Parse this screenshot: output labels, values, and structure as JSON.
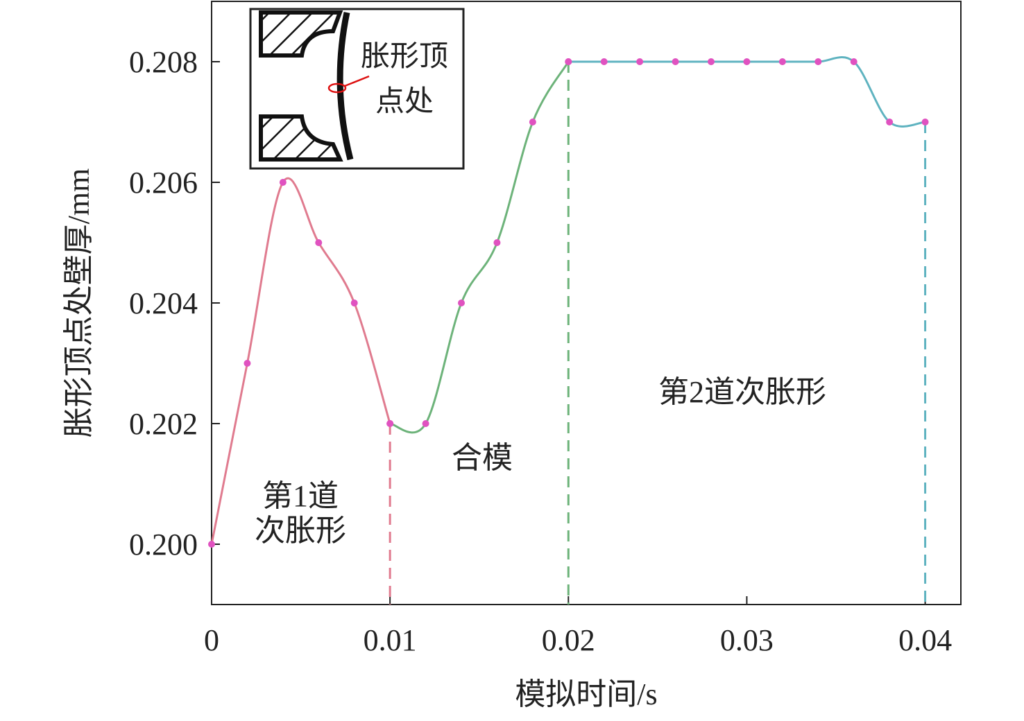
{
  "chart_data": {
    "type": "line",
    "xlabel": "模拟时间/s",
    "ylabel": "胀形顶点处壁厚/mm",
    "xlim": [
      0,
      0.042
    ],
    "ylim": [
      0.199,
      0.209
    ],
    "xticks": [
      0,
      0.01,
      0.02,
      0.03,
      0.04
    ],
    "yticks": [
      {
        "value": 0.2,
        "label": "0.200"
      },
      0.202,
      0.204,
      0.206,
      0.208
    ],
    "marker_color": "#e052c0",
    "series": [
      {
        "color": "#e07b8f",
        "x": [
          0,
          0.002,
          0.004,
          0.006,
          0.008,
          0.01
        ],
        "values": [
          0.2,
          0.203,
          0.206,
          0.205,
          0.204,
          0.202
        ]
      },
      {
        "color": "#6db37a",
        "x": [
          0.01,
          0.012,
          0.014,
          0.016,
          0.018,
          0.02
        ],
        "values": [
          0.202,
          0.202,
          0.204,
          0.205,
          0.207,
          0.208
        ]
      },
      {
        "color": "#5fb3c0",
        "x": [
          0.02,
          0.022,
          0.024,
          0.026,
          0.028,
          0.03,
          0.032,
          0.034,
          0.036,
          0.038,
          0.04
        ],
        "values": [
          0.208,
          0.208,
          0.208,
          0.208,
          0.208,
          0.208,
          0.208,
          0.208,
          0.208,
          0.207,
          0.207
        ]
      }
    ],
    "annotations": [
      [
        "第1道",
        "次胀形"
      ],
      [
        "合模"
      ],
      [
        "第2道次胀形"
      ]
    ],
    "inset_label": [
      "胀形顶",
      "点处"
    ]
  }
}
